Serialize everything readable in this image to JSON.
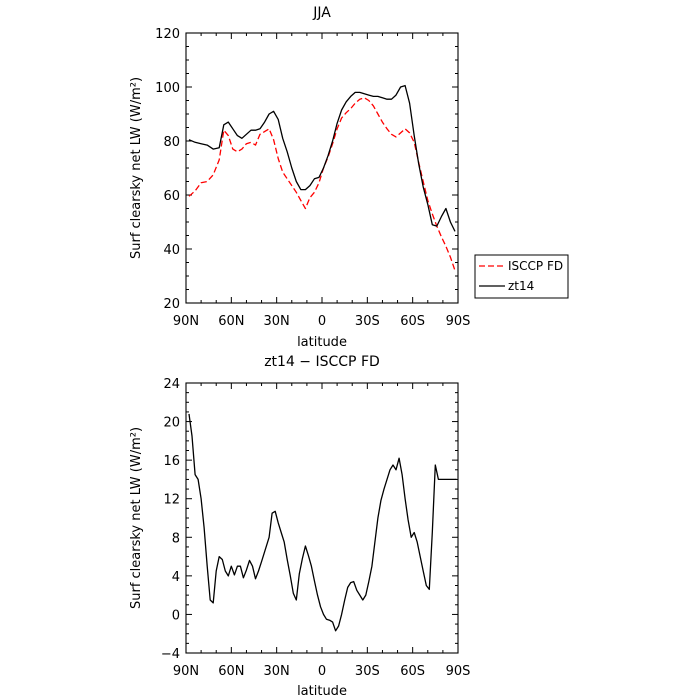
{
  "chart_data": [
    {
      "type": "line",
      "title": "JJA",
      "xlabel": "latitude",
      "ylabel": "Surf clearsky net LW (W/m²)",
      "xlim": [
        90,
        -90
      ],
      "ylim": [
        20,
        120
      ],
      "xticks": [
        {
          "value": 90,
          "label": "90N"
        },
        {
          "value": 60,
          "label": "60N"
        },
        {
          "value": 30,
          "label": "30N"
        },
        {
          "value": 0,
          "label": "0"
        },
        {
          "value": -30,
          "label": "30S"
        },
        {
          "value": -60,
          "label": "60S"
        },
        {
          "value": -90,
          "label": "90S"
        }
      ],
      "yticks": [
        20,
        40,
        60,
        80,
        100,
        120
      ],
      "legend": {
        "placement": "right, outside plot"
      },
      "series": [
        {
          "name": "ISCCP FD",
          "color": "#ff0000",
          "style": "dashed",
          "x": [
            88,
            84,
            80,
            76,
            72,
            68,
            65,
            62,
            59,
            56,
            53,
            50,
            47,
            44,
            41,
            38,
            35,
            32,
            29,
            26,
            23,
            20,
            17,
            14,
            11,
            8,
            5,
            2,
            -1,
            -4,
            -7,
            -10,
            -13,
            -16,
            -19,
            -22,
            -25,
            -28,
            -31,
            -34,
            -37,
            -40,
            -43,
            -46,
            -49,
            -52,
            -55,
            -58,
            -61,
            -64,
            -67,
            -70,
            -73,
            -76,
            -79,
            -82,
            -85,
            -88
          ],
          "values": [
            59.5,
            61.5,
            64.5,
            65.0,
            67.5,
            73.0,
            84.0,
            82.0,
            77.0,
            76.0,
            77.0,
            79.0,
            79.5,
            78.5,
            82.5,
            83.5,
            84.5,
            80.5,
            73.5,
            68.5,
            66.0,
            63.5,
            61.0,
            58.0,
            55.0,
            59.0,
            61.0,
            64.5,
            70.0,
            74.0,
            79.0,
            84.5,
            88.5,
            90.5,
            92.0,
            94.0,
            95.5,
            96.0,
            95.0,
            93.0,
            90.0,
            87.0,
            84.5,
            82.5,
            81.5,
            83.0,
            84.5,
            83.0,
            79.5,
            72.0,
            65.0,
            58.0,
            53.0,
            48.5,
            44.5,
            41.0,
            37.0,
            32.0
          ]
        },
        {
          "name": "zt14",
          "color": "#000000",
          "style": "solid",
          "x": [
            88,
            84,
            80,
            76,
            72,
            68,
            65,
            62,
            59,
            56,
            53,
            50,
            47,
            44,
            41,
            38,
            35,
            32,
            29,
            26,
            23,
            20,
            17,
            14,
            11,
            8,
            5,
            2,
            -1,
            -4,
            -7,
            -10,
            -13,
            -16,
            -19,
            -22,
            -25,
            -28,
            -31,
            -34,
            -37,
            -40,
            -43,
            -46,
            -49,
            -52,
            -55,
            -58,
            -61,
            -64,
            -67,
            -70,
            -73,
            -76,
            -79,
            -82,
            -85,
            -88
          ],
          "values": [
            80.5,
            79.5,
            79.0,
            78.5,
            77.0,
            77.5,
            86.0,
            87.0,
            84.5,
            82.0,
            81.0,
            82.5,
            84.0,
            84.0,
            84.5,
            87.0,
            90.0,
            91.0,
            88.0,
            81.0,
            76.0,
            70.0,
            65.0,
            62.0,
            62.0,
            63.5,
            66.0,
            66.5,
            70.0,
            74.5,
            80.0,
            86.5,
            91.5,
            94.5,
            96.5,
            98.0,
            98.0,
            97.5,
            97.0,
            96.5,
            96.5,
            96.0,
            95.5,
            95.5,
            97.0,
            100.0,
            100.5,
            94.0,
            82.0,
            71.5,
            63.0,
            56.5,
            49.0,
            48.5,
            52.0,
            55.0,
            50.0,
            46.5
          ]
        }
      ]
    },
    {
      "type": "line",
      "title": "zt14 − ISCCP FD",
      "xlabel": "latitude",
      "ylabel": "Surf clearsky net LW (W/m²)",
      "xlim": [
        90,
        -90
      ],
      "ylim": [
        -4,
        24
      ],
      "xticks": [
        {
          "value": 90,
          "label": "90N"
        },
        {
          "value": 60,
          "label": "60N"
        },
        {
          "value": 30,
          "label": "30N"
        },
        {
          "value": 0,
          "label": "0"
        },
        {
          "value": -30,
          "label": "30S"
        },
        {
          "value": -60,
          "label": "60S"
        },
        {
          "value": -90,
          "label": "90S"
        }
      ],
      "yticks": [
        -4,
        0,
        4,
        8,
        12,
        16,
        20,
        24
      ],
      "series": [
        {
          "color": "#000000",
          "style": "solid",
          "x": [
            88,
            86,
            84,
            82,
            80,
            78,
            76,
            74,
            72,
            70,
            68,
            66,
            64,
            62,
            60,
            58,
            56,
            54,
            52,
            50,
            48,
            46,
            44,
            42,
            40,
            38,
            35,
            33,
            31,
            29,
            27,
            25,
            23,
            21,
            19,
            17,
            15,
            13,
            11,
            9,
            7,
            5,
            3,
            1,
            -1,
            -3,
            -5,
            -7,
            -9,
            -11,
            -13,
            -15,
            -17,
            -19,
            -21,
            -23,
            -25,
            -27,
            -29,
            -31,
            -33,
            -35,
            -37,
            -39,
            -41,
            -43,
            -45,
            -47,
            -49,
            -51,
            -53,
            -55,
            -57,
            -59,
            -61,
            -63,
            -65,
            -67,
            -69,
            -71,
            -73,
            -75,
            -77,
            -79,
            -81,
            -83,
            -85,
            -87,
            -89
          ],
          "values": [
            20.8,
            18.5,
            14.5,
            14.0,
            12.0,
            9.0,
            5.0,
            1.5,
            1.2,
            4.5,
            6.0,
            5.7,
            4.5,
            4.0,
            5.0,
            4.1,
            5.0,
            5.0,
            3.8,
            4.6,
            5.6,
            5.0,
            3.7,
            4.5,
            5.5,
            6.5,
            8.0,
            10.5,
            10.7,
            9.5,
            8.5,
            7.5,
            5.7,
            4.0,
            2.2,
            1.5,
            4.2,
            5.8,
            7.1,
            6.1,
            5.0,
            3.5,
            2.0,
            0.8,
            0.0,
            -0.5,
            -0.6,
            -0.8,
            -1.7,
            -1.2,
            0.0,
            1.5,
            2.8,
            3.3,
            3.4,
            2.5,
            2.0,
            1.5,
            2.0,
            3.4,
            5.0,
            7.5,
            10.0,
            11.8,
            13.0,
            14.0,
            15.0,
            15.5,
            15.0,
            16.2,
            14.5,
            12.0,
            9.8,
            8.0,
            8.5,
            7.5,
            6.0,
            4.5,
            3.0,
            2.6,
            8.5,
            15.5,
            14.0,
            14.0,
            14.0,
            14.0,
            14.0,
            14.0,
            14.0
          ]
        }
      ]
    }
  ]
}
